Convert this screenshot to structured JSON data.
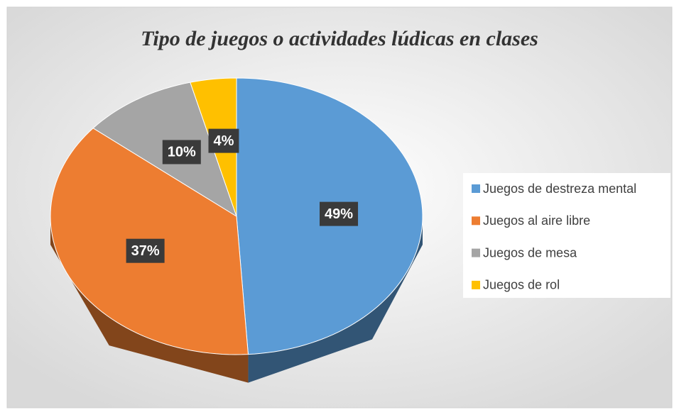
{
  "chart_data": {
    "type": "pie",
    "title": "Tipo de juegos o actividades lúdicas en clases",
    "categories": [
      "Juegos de destreza mental",
      "Juegos al aire libre",
      "Juegos de mesa",
      "Juegos de rol"
    ],
    "values": [
      49,
      37,
      10,
      4
    ],
    "value_labels": [
      "49%",
      "37%",
      "10%",
      "4%"
    ],
    "colors": [
      "#5b9bd5",
      "#ed7d31",
      "#a5a5a5",
      "#ffc000"
    ],
    "legend": "right"
  }
}
